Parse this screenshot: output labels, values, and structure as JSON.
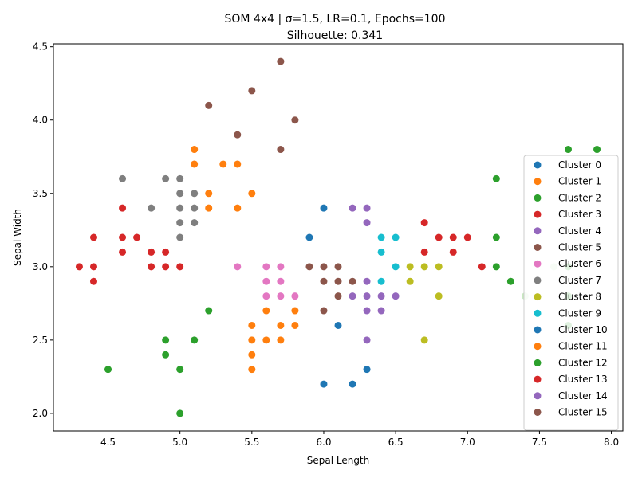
{
  "chart_data": {
    "type": "scatter",
    "title": "SOM 4x4 | σ=1.5, LR=0.1, Epochs=100",
    "subtitle": "Silhouette: 0.341",
    "xlabel": "Sepal Length",
    "ylabel": "Sepal Width",
    "xlim": [
      4.12,
      8.08
    ],
    "ylim": [
      1.88,
      4.52
    ],
    "xticks": [
      "4.5",
      "5.0",
      "5.5",
      "6.0",
      "6.5",
      "7.0",
      "7.5",
      "8.0"
    ],
    "yticks": [
      "2.0",
      "2.5",
      "3.0",
      "3.5",
      "4.0",
      "4.5"
    ],
    "grid": false,
    "legend": "right",
    "series": [
      {
        "name": "Cluster 0",
        "color": "#1f77b4",
        "points": [
          [
            5.9,
            3.2
          ],
          [
            6.0,
            3.4
          ],
          [
            6.1,
            2.6
          ],
          [
            6.0,
            2.2
          ],
          [
            6.2,
            2.2
          ],
          [
            6.3,
            2.3
          ]
        ]
      },
      {
        "name": "Cluster 1",
        "color": "#ff7f0e",
        "points": [
          [
            5.1,
            3.8
          ],
          [
            5.1,
            3.7
          ],
          [
            5.3,
            3.7
          ],
          [
            5.4,
            3.7
          ],
          [
            5.2,
            3.5
          ],
          [
            5.5,
            3.5
          ],
          [
            5.2,
            3.4
          ],
          [
            5.4,
            3.4
          ]
        ]
      },
      {
        "name": "Cluster 2",
        "color": "#2ca02c",
        "points": [
          [
            7.7,
            3.8
          ],
          [
            7.9,
            3.8
          ],
          [
            7.2,
            3.6
          ],
          [
            7.2,
            3.2
          ],
          [
            7.2,
            3.0
          ],
          [
            7.3,
            2.9
          ],
          [
            7.7,
            2.6
          ]
        ]
      },
      {
        "name": "Cluster 3",
        "color": "#d62728",
        "points": [
          [
            4.6,
            3.4
          ],
          [
            4.4,
            3.2
          ],
          [
            4.6,
            3.2
          ],
          [
            4.7,
            3.2
          ],
          [
            4.6,
            3.1
          ],
          [
            4.8,
            3.1
          ],
          [
            4.9,
            3.1
          ],
          [
            4.3,
            3.0
          ],
          [
            4.4,
            3.0
          ],
          [
            4.8,
            3.0
          ],
          [
            4.9,
            3.0
          ],
          [
            5.0,
            3.0
          ],
          [
            4.4,
            2.9
          ]
        ]
      },
      {
        "name": "Cluster 4",
        "color": "#9467bd",
        "points": [
          [
            6.2,
            3.4
          ],
          [
            6.3,
            3.4
          ],
          [
            6.3,
            3.3
          ]
        ]
      },
      {
        "name": "Cluster 5",
        "color": "#8c564b",
        "points": [
          [
            5.7,
            4.4
          ],
          [
            5.5,
            4.2
          ],
          [
            5.2,
            4.1
          ],
          [
            5.8,
            4.0
          ],
          [
            5.4,
            3.9
          ],
          [
            5.7,
            3.8
          ]
        ]
      },
      {
        "name": "Cluster 6",
        "color": "#e377c2",
        "points": [
          [
            5.4,
            3.0
          ],
          [
            5.6,
            3.0
          ],
          [
            5.7,
            3.0
          ],
          [
            5.6,
            2.9
          ],
          [
            5.7,
            2.9
          ],
          [
            5.6,
            2.8
          ],
          [
            5.7,
            2.8
          ],
          [
            5.8,
            2.8
          ]
        ]
      },
      {
        "name": "Cluster 7",
        "color": "#7f7f7f",
        "points": [
          [
            4.6,
            3.6
          ],
          [
            4.9,
            3.6
          ],
          [
            5.0,
            3.6
          ],
          [
            5.0,
            3.5
          ],
          [
            5.1,
            3.5
          ],
          [
            4.8,
            3.4
          ],
          [
            5.0,
            3.4
          ],
          [
            5.1,
            3.4
          ],
          [
            5.0,
            3.3
          ],
          [
            5.1,
            3.3
          ],
          [
            5.0,
            3.2
          ]
        ]
      },
      {
        "name": "Cluster 8",
        "color": "#bcbd22",
        "points": [
          [
            6.6,
            3.0
          ],
          [
            6.7,
            3.0
          ],
          [
            6.8,
            3.0
          ],
          [
            6.6,
            2.9
          ],
          [
            6.8,
            2.8
          ],
          [
            6.7,
            2.5
          ]
        ]
      },
      {
        "name": "Cluster 9",
        "color": "#17becf",
        "points": [
          [
            6.4,
            3.2
          ],
          [
            6.5,
            3.2
          ],
          [
            6.4,
            3.1
          ],
          [
            6.5,
            3.0
          ],
          [
            6.4,
            2.9
          ]
        ]
      },
      {
        "name": "Cluster 10",
        "color": "#1f77b4",
        "points": []
      },
      {
        "name": "Cluster 11",
        "color": "#ff7f0e",
        "points": [
          [
            5.6,
            2.7
          ],
          [
            5.8,
            2.7
          ],
          [
            5.5,
            2.6
          ],
          [
            5.7,
            2.6
          ],
          [
            5.8,
            2.6
          ],
          [
            5.5,
            2.5
          ],
          [
            5.6,
            2.5
          ],
          [
            5.7,
            2.5
          ],
          [
            5.5,
            2.4
          ],
          [
            5.5,
            2.3
          ]
        ]
      },
      {
        "name": "Cluster 12",
        "color": "#2ca02c",
        "points": [
          [
            5.2,
            2.7
          ],
          [
            4.9,
            2.5
          ],
          [
            5.1,
            2.5
          ],
          [
            4.9,
            2.4
          ],
          [
            4.5,
            2.3
          ],
          [
            5.0,
            2.3
          ],
          [
            5.0,
            2.0
          ]
        ]
      },
      {
        "name": "Cluster 13",
        "color": "#d62728",
        "points": [
          [
            6.7,
            3.3
          ],
          [
            6.7,
            3.1
          ],
          [
            6.8,
            3.2
          ],
          [
            6.9,
            3.2
          ],
          [
            7.0,
            3.2
          ],
          [
            6.9,
            3.1
          ],
          [
            7.1,
            3.0
          ]
        ]
      },
      {
        "name": "Cluster 14",
        "color": "#9467bd",
        "points": [
          [
            6.3,
            2.9
          ],
          [
            6.2,
            2.8
          ],
          [
            6.3,
            2.8
          ],
          [
            6.4,
            2.8
          ],
          [
            6.5,
            2.8
          ],
          [
            6.3,
            2.7
          ],
          [
            6.4,
            2.7
          ],
          [
            6.3,
            2.5
          ]
        ]
      },
      {
        "name": "Cluster 15",
        "color": "#8c564b",
        "points": [
          [
            5.9,
            3.0
          ],
          [
            6.0,
            3.0
          ],
          [
            6.1,
            3.0
          ],
          [
            6.0,
            2.9
          ],
          [
            6.1,
            2.9
          ],
          [
            6.2,
            2.9
          ],
          [
            6.1,
            2.8
          ],
          [
            6.0,
            2.7
          ]
        ]
      }
    ],
    "extra_points": [
      {
        "color": "#c7e9c0",
        "points": [
          [
            7.4,
            2.8
          ],
          [
            7.6,
            3.0
          ]
        ]
      },
      {
        "color": "#2ca02c",
        "points": [
          [
            7.7,
            3.0
          ],
          [
            7.7,
            2.8
          ]
        ]
      }
    ]
  }
}
